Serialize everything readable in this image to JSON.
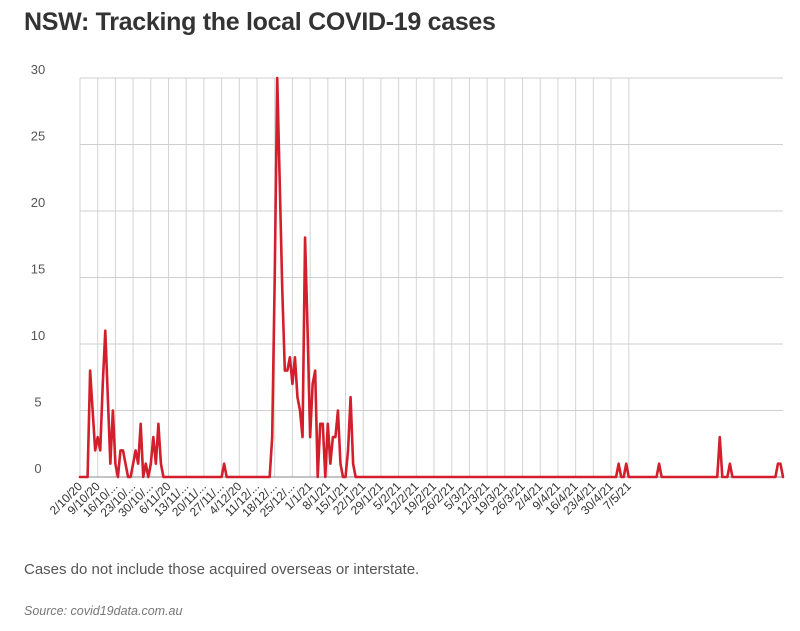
{
  "header": {
    "title": "NSW: Tracking the local COVID-19 cases"
  },
  "footer": {
    "note": "Cases do not include those acquired overseas or interstate.",
    "source": "Source: covid19data.com.au"
  },
  "chart_data": {
    "type": "line",
    "title": "NSW: Tracking the local COVID-19 cases",
    "xlabel": "",
    "ylabel": "",
    "ylim": [
      0,
      30
    ],
    "yticks": [
      "0",
      "5",
      "10",
      "15",
      "20",
      "25",
      "30"
    ],
    "grid": true,
    "line_color": "#d21f2b",
    "x_tick_labels": [
      "2/10/20",
      "9/10/20",
      "16/10/...",
      "23/10/...",
      "30/10/...",
      "6/11/20",
      "13/11/...",
      "20/11/...",
      "27/11/...",
      "4/12/20",
      "11/12/...",
      "18/12/...",
      "25/12/...",
      "1/1/21",
      "8/1/21",
      "15/1/21",
      "22/1/21",
      "29/1/21",
      "5/2/21",
      "12/2/21",
      "19/2/21",
      "26/2/21",
      "5/3/21",
      "12/3/21",
      "19/3/21",
      "26/3/21",
      "2/4/21",
      "9/4/21",
      "16/4/21",
      "23/4/21",
      "30/4/21",
      "7/5/21"
    ],
    "series": [
      {
        "start": "2/10/20",
        "values": [
          0,
          0,
          0,
          0,
          8,
          5,
          2,
          3,
          2,
          7,
          11,
          6,
          1,
          5,
          1,
          0,
          2,
          2,
          1,
          0,
          0,
          1,
          2,
          1,
          4,
          0,
          1,
          0,
          1,
          3,
          1,
          4,
          1,
          0,
          0,
          0,
          0,
          0,
          0,
          0,
          0,
          0,
          0,
          0,
          0,
          0,
          0,
          0,
          0,
          0,
          0,
          0,
          0,
          0,
          0,
          0,
          0,
          1,
          0,
          0,
          0,
          0,
          0,
          0,
          0,
          0,
          0,
          0,
          0,
          0,
          0,
          0,
          0,
          0,
          0,
          0,
          3,
          15,
          30,
          22,
          14,
          8,
          8,
          9,
          7,
          9,
          6,
          5,
          3,
          18,
          11,
          3,
          7,
          8,
          0,
          4,
          4,
          0,
          4,
          1,
          3,
          3,
          5,
          1,
          0,
          0,
          2,
          6,
          1,
          0,
          0,
          0,
          0,
          0,
          0,
          0,
          0,
          0,
          0,
          0,
          0,
          0,
          0,
          0,
          0,
          0,
          0,
          0,
          0,
          0,
          0,
          0,
          0,
          0,
          0,
          0,
          0,
          0,
          0,
          0,
          0,
          0,
          0,
          0,
          0,
          0,
          0,
          0,
          0,
          0,
          0,
          0,
          0,
          0,
          0,
          0,
          0,
          0,
          0,
          0,
          0,
          0,
          0,
          0,
          0,
          0,
          0,
          0,
          0,
          0,
          0,
          0,
          0,
          0,
          0,
          0,
          0,
          0,
          0,
          0,
          0,
          0,
          0,
          0,
          0,
          0,
          0,
          0,
          0,
          0,
          0,
          0,
          0,
          0,
          0,
          0,
          0,
          0,
          0,
          0,
          0,
          0,
          0,
          0,
          0,
          0,
          0,
          0,
          0,
          0,
          0,
          0,
          0,
          1,
          0,
          0,
          1,
          0,
          0,
          0,
          0,
          0,
          0,
          0,
          0,
          0,
          0,
          0,
          0,
          1,
          0,
          0,
          0,
          0,
          0,
          0,
          0,
          0,
          0,
          0,
          0,
          0,
          0,
          0,
          0,
          0,
          0,
          0,
          0,
          0,
          0,
          0,
          0,
          3,
          0,
          0,
          0,
          1,
          0,
          0,
          0,
          0,
          0,
          0,
          0,
          0,
          0,
          0,
          0,
          0,
          0,
          0,
          0,
          0,
          0,
          0,
          1,
          1,
          0
        ]
      }
    ]
  }
}
